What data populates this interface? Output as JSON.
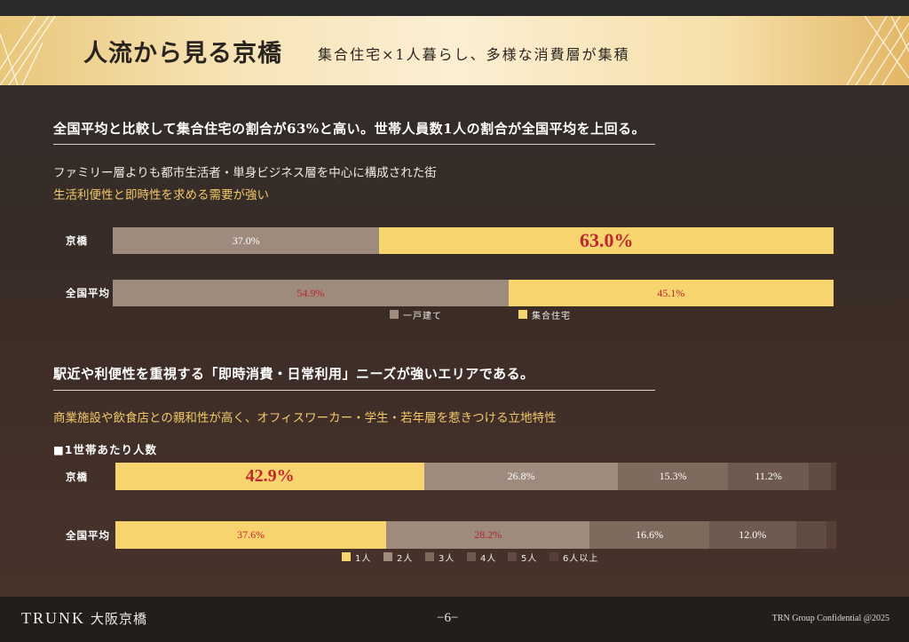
{
  "header": {
    "title": "人流から見る京橋",
    "subtitle": "集合住宅×1人暮らし、多様な消費層が集積"
  },
  "section1": {
    "heading": "全国平均と比較して集合住宅の割合が63%と高い。世帯人員数1人の割合が全国平均を上回る。",
    "note1": "ファミリー層よりも都市生活者・単身ビジネス層を中心に構成された街",
    "note2": "生活利便性と即時性を求める需要が強い"
  },
  "section2": {
    "heading": "駅近や利便性を重視する「即時消費・日常利用」ニーズが強いエリアである。",
    "note1": "商業施設や飲食店との親和性が高く、オフィスワーカー・学生・若年層を惹きつける立地特性",
    "subheading": "■1世帯あたり人数"
  },
  "colors": {
    "detached": "#9e8b7e",
    "collective": "#f8d46e",
    "p1": "#f8d46e",
    "p2": "#9e8b7e",
    "p3": "#7f6a5e",
    "p4": "#6e5a4f",
    "p5": "#604c43",
    "p6": "#553f37"
  },
  "chart_data": [
    {
      "type": "bar",
      "orientation": "horizontal",
      "stacked": true,
      "percent": true,
      "categories": [
        "京橋",
        "全国平均"
      ],
      "series": [
        {
          "name": "一戸建て",
          "values": [
            37.0,
            54.9
          ],
          "labels": [
            "37.0%",
            "54.9%"
          ]
        },
        {
          "name": "集合住宅",
          "values": [
            63.0,
            45.1
          ],
          "labels": [
            "63.0%",
            "45.1%"
          ]
        }
      ],
      "legend": "bottom"
    },
    {
      "type": "bar",
      "orientation": "horizontal",
      "stacked": true,
      "percent": true,
      "categories": [
        "京橋",
        "全国平均"
      ],
      "series": [
        {
          "name": "1人",
          "values": [
            42.9,
            37.6
          ],
          "labels": [
            "42.9%",
            "37.6%"
          ]
        },
        {
          "name": "2人",
          "values": [
            26.8,
            28.2
          ],
          "labels": [
            "26.8%",
            "28.2%"
          ]
        },
        {
          "name": "3人",
          "values": [
            15.3,
            16.6
          ],
          "labels": [
            "15.3%",
            "16.6%"
          ]
        },
        {
          "name": "4人",
          "values": [
            11.2,
            12.0
          ],
          "labels": [
            "11.2%",
            "12.0%"
          ]
        },
        {
          "name": "5人",
          "values": [
            3.0,
            4.2
          ],
          "labels": [
            "",
            ""
          ]
        },
        {
          "name": "6人以上",
          "values": [
            0.8,
            1.4
          ],
          "labels": [
            "",
            ""
          ]
        }
      ],
      "legend": "bottom"
    }
  ],
  "footer": {
    "brand": "TRUNK",
    "brand_jp": "大阪京橋",
    "page": "−6−",
    "confidential": "TRN Group Confidential @2025"
  }
}
